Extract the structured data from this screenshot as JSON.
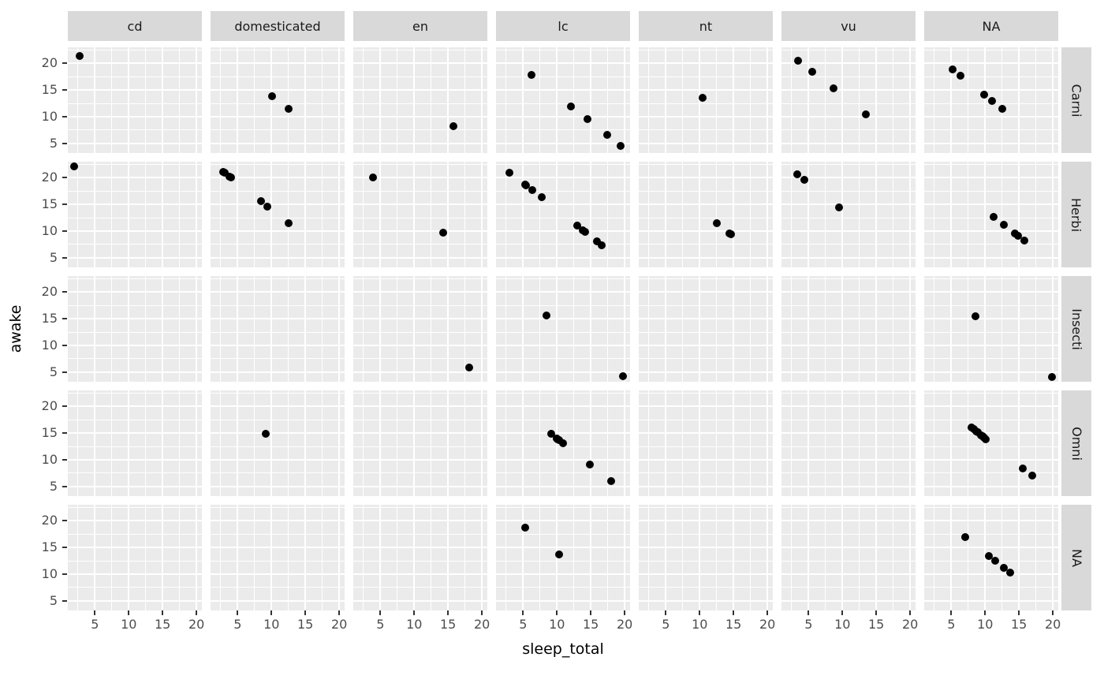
{
  "chart_data": {
    "type": "scatter",
    "title": "",
    "xlabel": "sleep_total",
    "ylabel": "awake",
    "facet": {
      "cols": [
        "cd",
        "domesticated",
        "en",
        "lc",
        "nt",
        "vu",
        "NA"
      ],
      "rows": [
        "Carni",
        "Herbi",
        "Insecti",
        "Omni",
        "NA"
      ]
    },
    "x": {
      "label": "sleep_total",
      "ticks": [
        5,
        10,
        15,
        20
      ],
      "minor": [
        2.5,
        7.5,
        12.5,
        17.5
      ],
      "range": [
        1.0,
        20.8
      ]
    },
    "y": {
      "label": "awake",
      "ticks": [
        5,
        10,
        15,
        20
      ],
      "minor": [
        7.5,
        12.5,
        17.5,
        22.5
      ],
      "range": [
        3.2,
        23.0
      ]
    },
    "layout": {
      "grid": true,
      "legend": false,
      "panel_rows": 5,
      "panel_cols": 7
    },
    "colors": {
      "panel_bg": "#EBEBEB",
      "strip_bg": "#D9D9D9",
      "strip_text": "#1A1A1A",
      "gridline": "#FFFFFF",
      "point": "#000000",
      "tick_label": "#4D4D4D",
      "tick_mark": "#333333",
      "axis_title": "#000000",
      "background": "#FFFFFF"
    },
    "panels": [
      {
        "row": "Carni",
        "col": "cd",
        "points": [
          [
            2.7,
            21.4
          ]
        ]
      },
      {
        "row": "Carni",
        "col": "domesticated",
        "points": [
          [
            10.1,
            13.9
          ],
          [
            12.5,
            11.5
          ]
        ]
      },
      {
        "row": "Carni",
        "col": "en",
        "points": [
          [
            15.8,
            8.2
          ]
        ]
      },
      {
        "row": "Carni",
        "col": "lc",
        "points": [
          [
            6.2,
            17.8
          ],
          [
            12.1,
            11.9
          ],
          [
            14.5,
            9.5
          ],
          [
            17.4,
            6.6
          ],
          [
            19.4,
            4.6
          ]
        ]
      },
      {
        "row": "Carni",
        "col": "nt",
        "points": [
          [
            10.4,
            13.6
          ]
        ]
      },
      {
        "row": "Carni",
        "col": "vu",
        "points": [
          [
            3.5,
            20.5
          ],
          [
            5.6,
            18.4
          ],
          [
            8.7,
            15.3
          ],
          [
            13.5,
            10.5
          ]
        ]
      },
      {
        "row": "Carni",
        "col": "NA",
        "points": [
          [
            5.2,
            18.8
          ],
          [
            6.3,
            17.7
          ],
          [
            9.8,
            14.2
          ],
          [
            11.0,
            13.0
          ],
          [
            12.5,
            11.5
          ]
        ]
      },
      {
        "row": "Herbi",
        "col": "cd",
        "points": [
          [
            1.9,
            22.1
          ]
        ]
      },
      {
        "row": "Herbi",
        "col": "domesticated",
        "points": [
          [
            2.9,
            21.1
          ],
          [
            3.1,
            20.9
          ],
          [
            3.8,
            20.2
          ],
          [
            4.0,
            20.0
          ],
          [
            8.4,
            15.6
          ],
          [
            9.4,
            14.6
          ],
          [
            12.5,
            11.5
          ]
        ]
      },
      {
        "row": "Herbi",
        "col": "en",
        "points": [
          [
            3.9,
            20.1
          ],
          [
            14.3,
            9.7
          ]
        ]
      },
      {
        "row": "Herbi",
        "col": "lc",
        "points": [
          [
            3.0,
            21.0
          ],
          [
            5.3,
            18.7
          ],
          [
            5.4,
            18.6
          ],
          [
            6.3,
            17.7
          ],
          [
            7.7,
            16.3
          ],
          [
            13.0,
            11.0
          ],
          [
            13.8,
            10.2
          ],
          [
            14.2,
            9.8
          ],
          [
            15.9,
            8.1
          ],
          [
            16.6,
            7.4
          ]
        ]
      },
      {
        "row": "Herbi",
        "col": "nt",
        "points": [
          [
            12.5,
            11.5
          ],
          [
            14.4,
            9.6
          ],
          [
            14.6,
            9.4
          ]
        ]
      },
      {
        "row": "Herbi",
        "col": "vu",
        "points": [
          [
            3.3,
            20.7
          ],
          [
            4.4,
            19.6
          ],
          [
            9.5,
            14.5
          ]
        ]
      },
      {
        "row": "Herbi",
        "col": "NA",
        "points": [
          [
            11.3,
            12.7
          ],
          [
            12.8,
            11.2
          ],
          [
            14.4,
            9.6
          ],
          [
            14.9,
            9.1
          ],
          [
            15.8,
            8.2
          ]
        ]
      },
      {
        "row": "Insecti",
        "col": "cd",
        "points": []
      },
      {
        "row": "Insecti",
        "col": "domesticated",
        "points": []
      },
      {
        "row": "Insecti",
        "col": "en",
        "points": [
          [
            18.1,
            5.9
          ]
        ]
      },
      {
        "row": "Insecti",
        "col": "lc",
        "points": [
          [
            8.4,
            15.6
          ],
          [
            19.7,
            4.3
          ]
        ]
      },
      {
        "row": "Insecti",
        "col": "nt",
        "points": []
      },
      {
        "row": "Insecti",
        "col": "vu",
        "points": []
      },
      {
        "row": "Insecti",
        "col": "NA",
        "points": [
          [
            8.6,
            15.4
          ],
          [
            19.9,
            4.1
          ]
        ]
      },
      {
        "row": "Omni",
        "col": "cd",
        "points": []
      },
      {
        "row": "Omni",
        "col": "domesticated",
        "points": [
          [
            9.1,
            14.9
          ]
        ]
      },
      {
        "row": "Omni",
        "col": "en",
        "points": []
      },
      {
        "row": "Omni",
        "col": "lc",
        "points": [
          [
            9.1,
            14.9
          ],
          [
            10.0,
            14.0
          ],
          [
            10.1,
            13.9
          ],
          [
            10.3,
            13.7
          ],
          [
            10.9,
            13.1
          ],
          [
            14.9,
            9.1
          ],
          [
            18.0,
            6.0
          ]
        ]
      },
      {
        "row": "Omni",
        "col": "nt",
        "points": []
      },
      {
        "row": "Omni",
        "col": "vu",
        "points": []
      },
      {
        "row": "Omni",
        "col": "NA",
        "points": [
          [
            8.0,
            16.0
          ],
          [
            8.3,
            15.7
          ],
          [
            8.7,
            15.3
          ],
          [
            8.9,
            15.1
          ],
          [
            9.4,
            14.6
          ],
          [
            9.6,
            14.4
          ],
          [
            9.7,
            14.3
          ],
          [
            9.8,
            14.2
          ],
          [
            10.1,
            13.9
          ],
          [
            15.6,
            8.4
          ],
          [
            17.0,
            7.0
          ]
        ]
      },
      {
        "row": "NA",
        "col": "cd",
        "points": []
      },
      {
        "row": "NA",
        "col": "domesticated",
        "points": []
      },
      {
        "row": "NA",
        "col": "en",
        "points": []
      },
      {
        "row": "NA",
        "col": "lc",
        "points": [
          [
            5.3,
            18.7
          ],
          [
            10.3,
            13.7
          ]
        ]
      },
      {
        "row": "NA",
        "col": "nt",
        "points": []
      },
      {
        "row": "NA",
        "col": "vu",
        "points": []
      },
      {
        "row": "NA",
        "col": "NA",
        "points": [
          [
            7.0,
            17.0
          ],
          [
            10.6,
            13.4
          ],
          [
            11.5,
            12.5
          ],
          [
            12.8,
            11.2
          ],
          [
            13.7,
            10.3
          ]
        ]
      }
    ]
  }
}
